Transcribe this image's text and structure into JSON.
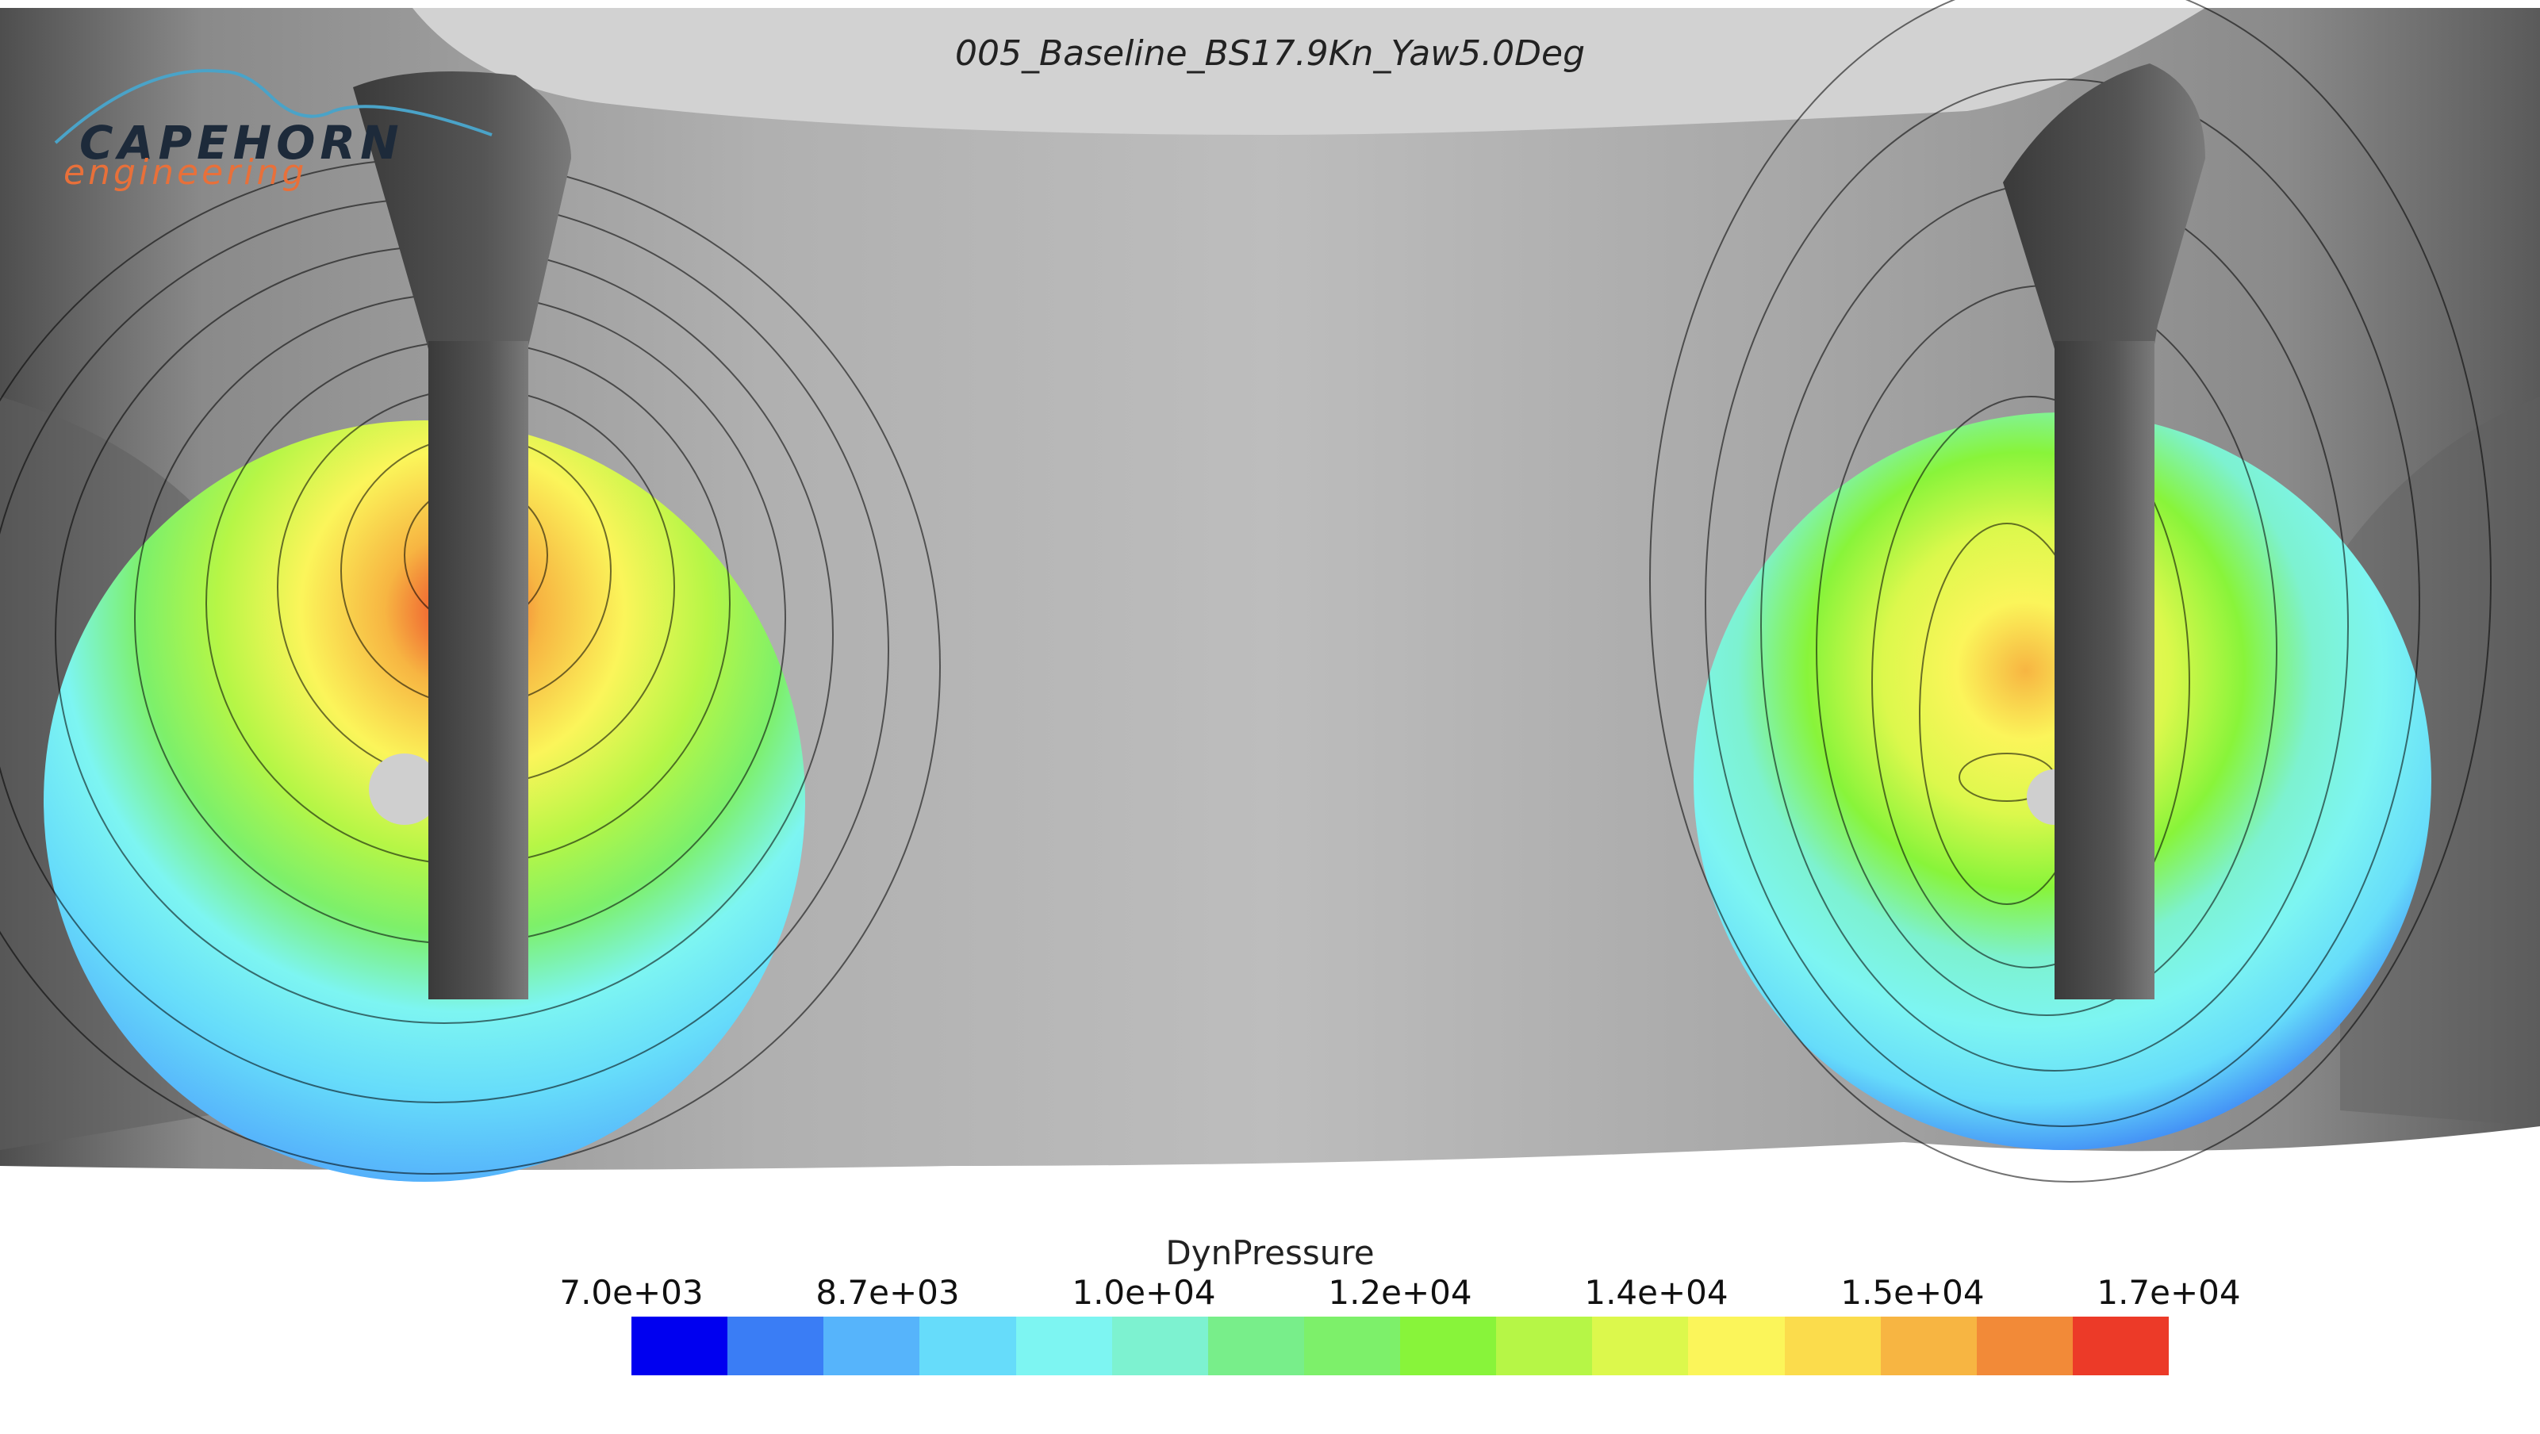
{
  "view": {
    "title": "005_Baseline_BS17.9Kn_Yaw5.0Deg"
  },
  "logo": {
    "line1": "CAPEHORN",
    "line2": "engineering",
    "colors": {
      "primary": "#1d2a3a",
      "accent": "#e8703a",
      "swoosh": "#4aa3c8"
    }
  },
  "legend": {
    "variable": "DynPressure",
    "ticks": [
      "7.0e+03",
      "8.7e+03",
      "1.0e+04",
      "1.2e+04",
      "1.4e+04",
      "1.5e+04",
      "1.7e+04"
    ],
    "colors": [
      "#0000f0",
      "#3a7df5",
      "#56b4fb",
      "#66dcfa",
      "#7df5f2",
      "#7df2d0",
      "#78ee8a",
      "#7df06a",
      "#88f43a",
      "#b6f646",
      "#dcf84c",
      "#fbf55a",
      "#fbdc4c",
      "#f7b542",
      "#f28a38",
      "#ec3a28"
    ]
  }
}
